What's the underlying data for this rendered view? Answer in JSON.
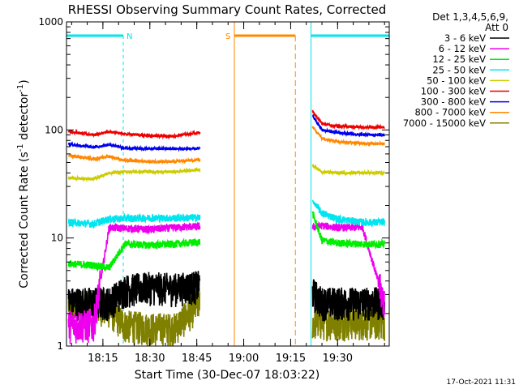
{
  "chart_data": {
    "type": "line",
    "title": "RHESSI Observing Summary Count Rates, Corrected",
    "xlabel": "Start Time (30-Dec-07 18:03:22)",
    "ylabel": "Corrected Count Rate (s⁻¹ detector⁻¹)",
    "ylabel_parts": [
      "Corrected Count Rate (s",
      "-1",
      " detector",
      "-1",
      ")"
    ],
    "y_scale": "log",
    "ylim": [
      1,
      1000
    ],
    "y_ticks": [
      1,
      10,
      100,
      1000
    ],
    "y_tick_labels": [
      "1",
      "10",
      "100",
      "1000"
    ],
    "xlim": [
      "18:03:22",
      "19:46:30"
    ],
    "x_ticks": [
      "18:15",
      "18:30",
      "18:45",
      "19:00",
      "19:15",
      "19:30"
    ],
    "legend_placement": "top-right, outside plot",
    "legend_header": [
      "Det 1,3,4,5,6,9,",
      "Att 0"
    ],
    "grid": false,
    "flags": [
      {
        "label": "N",
        "type": "Night",
        "color": "#00e5ee",
        "start": "18:03:22",
        "end": "18:21:30"
      },
      {
        "label": "S",
        "type": "SAA",
        "color": "#ff8800",
        "start": "18:57:00",
        "end": "19:16:30"
      },
      {
        "label": "",
        "type": "Night",
        "color": "#00e5ee",
        "start": "19:21:30",
        "end": "19:46:30"
      }
    ],
    "data_gaps": [
      [
        "18:47:00",
        "19:21:30"
      ]
    ],
    "series": [
      {
        "name": "3 - 6 keV",
        "color": "#000000",
        "x": [
          "18:04",
          "18:12",
          "18:17",
          "18:22",
          "18:30",
          "18:38",
          "18:46",
          "19:22",
          "19:25",
          "19:30",
          "19:38",
          "19:45"
        ],
        "y": [
          2.6,
          2.6,
          2.6,
          3.4,
          3.6,
          3.5,
          3.7,
          3.2,
          2.6,
          2.6,
          2.6,
          2.6
        ]
      },
      {
        "name": "6 - 12 keV",
        "color": "#ee00ee",
        "x": [
          "18:04",
          "18:12",
          "18:17",
          "18:22",
          "18:30",
          "18:38",
          "18:46",
          "19:22",
          "19:25",
          "19:30",
          "19:38",
          "19:45"
        ],
        "y": [
          1.6,
          1.6,
          12.5,
          12.3,
          12.0,
          12.5,
          12.8,
          12.5,
          13.0,
          12.5,
          12.5,
          2.5
        ]
      },
      {
        "name": "12 - 25 keV",
        "color": "#00ee00",
        "x": [
          "18:04",
          "18:12",
          "18:17",
          "18:22",
          "18:30",
          "18:38",
          "18:46",
          "19:22",
          "19:25",
          "19:30",
          "19:38",
          "19:45"
        ],
        "y": [
          5.8,
          5.6,
          5.3,
          8.8,
          8.6,
          8.8,
          9.2,
          17,
          9.5,
          9.0,
          8.8,
          8.8
        ]
      },
      {
        "name": "25 - 50 keV",
        "color": "#00e5ee",
        "x": [
          "18:04",
          "18:12",
          "18:17",
          "18:22",
          "18:30",
          "18:38",
          "18:46",
          "19:22",
          "19:25",
          "19:30",
          "19:38",
          "19:45"
        ],
        "y": [
          14,
          13.5,
          15.0,
          15.2,
          15.3,
          15.3,
          15.5,
          22,
          17,
          15,
          14,
          14
        ]
      },
      {
        "name": "50 - 100 keV",
        "color": "#cccc00",
        "x": [
          "18:04",
          "18:12",
          "18:17",
          "18:22",
          "18:30",
          "18:38",
          "18:46",
          "19:22",
          "19:25",
          "19:30",
          "19:38",
          "19:45"
        ],
        "y": [
          36,
          35,
          40,
          41,
          41,
          41,
          43,
          47,
          41,
          40,
          40,
          40
        ]
      },
      {
        "name": "100 - 300 keV",
        "color": "#ee0000",
        "x": [
          "18:04",
          "18:12",
          "18:17",
          "18:22",
          "18:30",
          "18:38",
          "18:46",
          "19:22",
          "19:25",
          "19:30",
          "19:38",
          "19:45"
        ],
        "y": [
          97,
          90,
          96,
          92,
          88,
          88,
          95,
          148,
          115,
          108,
          106,
          106
        ]
      },
      {
        "name": "300 - 800 keV",
        "color": "#0000ee",
        "x": [
          "18:04",
          "18:12",
          "18:17",
          "18:22",
          "18:30",
          "18:38",
          "18:46",
          "19:22",
          "19:25",
          "19:30",
          "19:38",
          "19:45"
        ],
        "y": [
          74,
          69,
          73,
          68,
          67,
          67,
          67,
          135,
          100,
          94,
          90,
          90
        ]
      },
      {
        "name": "800 - 7000 keV",
        "color": "#ff8800",
        "x": [
          "18:04",
          "18:12",
          "18:17",
          "18:22",
          "18:30",
          "18:38",
          "18:46",
          "19:22",
          "19:25",
          "19:30",
          "19:38",
          "19:45"
        ],
        "y": [
          58,
          54,
          57,
          52,
          51,
          51,
          53,
          107,
          84,
          78,
          75,
          75
        ]
      },
      {
        "name": "7000 - 15000 keV",
        "color": "#808000",
        "x": [
          "18:04",
          "18:12",
          "18:17",
          "18:22",
          "18:30",
          "18:38",
          "18:46",
          "19:22",
          "19:25",
          "19:30",
          "19:38",
          "19:45"
        ],
        "y": [
          2.4,
          2.4,
          2.2,
          1.6,
          1.5,
          1.5,
          2.6,
          1.7,
          1.7,
          1.7,
          1.7,
          1.7
        ]
      }
    ]
  },
  "footer": {
    "timestamp": "17-Oct-2021 11:31"
  }
}
